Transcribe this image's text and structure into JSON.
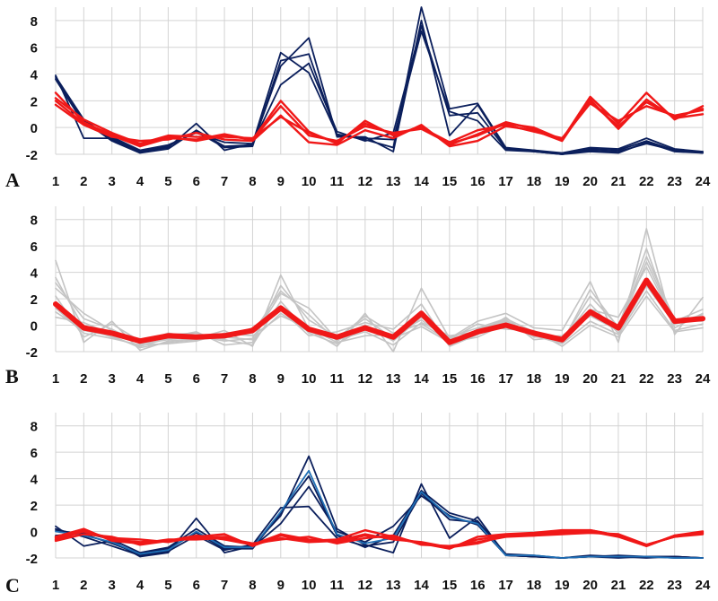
{
  "chart_data": [
    {
      "panel": "A",
      "type": "line",
      "x": [
        1,
        2,
        3,
        4,
        5,
        6,
        7,
        8,
        9,
        10,
        11,
        12,
        13,
        14,
        15,
        16,
        17,
        18,
        19,
        20,
        21,
        22,
        23,
        24
      ],
      "ylim": [
        -2,
        9
      ],
      "yticks": [
        -2,
        0,
        2,
        4,
        6,
        8
      ],
      "grid": true,
      "series": [
        {
          "group": "navy",
          "color": "#0b1f5c",
          "values": [
            3.9,
            -0.8,
            -0.8,
            -1.8,
            -1.5,
            0.3,
            -1.7,
            -1.2,
            5.6,
            4.1,
            -0.5,
            -0.9,
            -1.5,
            9.0,
            1.4,
            1.8,
            -1.5,
            -1.7,
            -1.9,
            -1.5,
            -1.6,
            -0.8,
            -1.6,
            -1.8
          ]
        },
        {
          "group": "navy",
          "color": "#0b1f5c",
          "values": [
            3.7,
            0.5,
            -1.0,
            -1.9,
            -1.6,
            -0.2,
            -1.4,
            -1.3,
            4.6,
            6.7,
            -0.7,
            -0.7,
            -1.8,
            8.0,
            -0.6,
            1.7,
            -1.6,
            -1.8,
            -2.0,
            -1.6,
            -1.7,
            -1.0,
            -1.7,
            -1.8
          ]
        },
        {
          "group": "navy",
          "color": "#0b1f5c",
          "values": [
            3.6,
            0.3,
            -0.7,
            -1.7,
            -1.3,
            -0.4,
            -1.1,
            -1.2,
            3.2,
            4.8,
            -0.3,
            -1.0,
            -0.4,
            7.6,
            0.9,
            1.1,
            -1.6,
            -1.7,
            -2.0,
            -1.7,
            -1.8,
            -1.2,
            -1.7,
            -1.9
          ]
        },
        {
          "group": "navy",
          "color": "#0b1f5c",
          "values": [
            3.8,
            0.6,
            -0.9,
            -1.8,
            -1.4,
            -0.3,
            -1.5,
            -1.4,
            5.0,
            5.5,
            -0.6,
            -0.8,
            -0.9,
            7.2,
            1.2,
            0.5,
            -1.7,
            -1.8,
            -2.0,
            -1.8,
            -1.9,
            -1.1,
            -1.8,
            -1.9
          ]
        },
        {
          "group": "red",
          "color": "#f01818",
          "values": [
            2.6,
            0.4,
            -0.6,
            -1.4,
            -0.8,
            -0.9,
            -0.5,
            -0.9,
            2.0,
            -0.3,
            -1.2,
            0.5,
            -0.6,
            0.1,
            -1.3,
            -0.5,
            0.4,
            -0.1,
            -0.9,
            2.3,
            0.3,
            2.6,
            0.6,
            1.6
          ]
        },
        {
          "group": "red",
          "color": "#f01818",
          "values": [
            2.2,
            0.6,
            -0.4,
            -1.2,
            -0.6,
            -0.7,
            -0.7,
            -0.8,
            0.8,
            -0.4,
            -1.1,
            0.3,
            -0.5,
            0.0,
            -1.1,
            -0.2,
            0.2,
            -0.3,
            -0.8,
            1.8,
            0.5,
            1.6,
            0.9,
            1.3
          ]
        },
        {
          "group": "red",
          "color": "#f01818",
          "values": [
            1.7,
            0.2,
            -0.7,
            -1.0,
            -0.9,
            -0.4,
            -0.9,
            -1.0,
            0.9,
            -1.1,
            -1.3,
            -0.2,
            -0.8,
            0.2,
            -1.4,
            -1.0,
            0.1,
            -0.2,
            -1.0,
            2.1,
            -0.1,
            2.1,
            0.7,
            1.0
          ]
        },
        {
          "group": "red",
          "color": "#f01818",
          "values": [
            2.0,
            0.3,
            -0.5,
            -1.3,
            -0.7,
            -1.0,
            -0.6,
            -0.9,
            1.6,
            -0.6,
            -1.0,
            0.1,
            -0.4,
            -0.1,
            -1.2,
            -0.6,
            0.3,
            0.0,
            -0.9,
            1.9,
            0.1,
            1.9,
            0.8,
            1.4
          ]
        }
      ]
    },
    {
      "panel": "B",
      "type": "line",
      "x": [
        1,
        2,
        3,
        4,
        5,
        6,
        7,
        8,
        9,
        10,
        11,
        12,
        13,
        14,
        15,
        16,
        17,
        18,
        19,
        20,
        21,
        22,
        23,
        24
      ],
      "ylim": [
        -2,
        9
      ],
      "yticks": [
        -2,
        0,
        2,
        4,
        6,
        8
      ],
      "grid": true,
      "series": [
        {
          "group": "gray",
          "color": "#c4c4c4",
          "values": [
            4.9,
            -1.3,
            0.3,
            -1.9,
            -1.2,
            -1.0,
            -0.4,
            -1.6,
            3.8,
            -0.3,
            -1.6,
            0.9,
            -2.0,
            2.8,
            -1.0,
            0.3,
            0.9,
            -0.2,
            -0.4,
            3.3,
            -1.3,
            7.3,
            -0.7,
            2.1
          ]
        },
        {
          "group": "gray",
          "color": "#c4c4c4",
          "values": [
            3.6,
            -0.2,
            -0.9,
            -1.6,
            -1.0,
            -0.8,
            -1.2,
            -1.0,
            2.4,
            1.3,
            -1.1,
            -0.5,
            -1.5,
            0.2,
            -0.8,
            -0.5,
            0.3,
            -0.7,
            -1.3,
            2.7,
            -0.2,
            5.2,
            0.4,
            0.3
          ]
        },
        {
          "group": "gray",
          "color": "#c4c4c4",
          "values": [
            2.8,
            0.9,
            -0.4,
            -1.3,
            -0.6,
            -0.9,
            -1.0,
            -0.2,
            1.2,
            -0.8,
            -0.5,
            0.2,
            -0.3,
            1.6,
            -1.6,
            -0.7,
            0.6,
            -1.1,
            -0.9,
            1.2,
            0.6,
            4.4,
            0.2,
            0.8
          ]
        },
        {
          "group": "gray",
          "color": "#c4c4c4",
          "values": [
            1.3,
            -0.6,
            -1.0,
            -1.5,
            -1.4,
            -1.2,
            -0.6,
            -0.8,
            0.7,
            -0.2,
            -1.3,
            -0.8,
            -0.7,
            0.4,
            -1.1,
            0.1,
            -0.3,
            -0.4,
            -1.6,
            0.0,
            -0.9,
            2.2,
            -0.5,
            -0.2
          ]
        },
        {
          "group": "gray",
          "color": "#c4c4c4",
          "values": [
            0.6,
            0.2,
            -0.7,
            -1.1,
            -0.9,
            -0.5,
            -1.5,
            -1.3,
            3.0,
            0.4,
            -0.9,
            0.5,
            -1.0,
            -0.1,
            -1.3,
            -0.9,
            0.1,
            -0.6,
            -1.1,
            1.6,
            -0.6,
            3.0,
            0.1,
            0.5
          ]
        },
        {
          "group": "gray",
          "color": "#c4c4c4",
          "values": [
            2.2,
            -0.9,
            0.1,
            -1.2,
            -0.7,
            -0.6,
            -1.1,
            -1.5,
            1.8,
            -0.6,
            -1.4,
            -0.2,
            -0.9,
            1.0,
            -1.5,
            -0.3,
            0.4,
            -0.9,
            -0.8,
            0.7,
            -0.4,
            4.8,
            0.3,
            1.2
          ]
        },
        {
          "group": "gray",
          "color": "#c4c4c4",
          "values": [
            3.2,
            0.5,
            -0.3,
            -1.4,
            -1.1,
            -0.8,
            -0.8,
            -0.6,
            2.6,
            0.8,
            -1.2,
            0.0,
            -1.2,
            0.6,
            -0.9,
            -0.2,
            0.5,
            -0.5,
            -1.2,
            2.2,
            -0.1,
            5.8,
            -0.2,
            0.9
          ]
        },
        {
          "group": "gray",
          "color": "#c4c4c4",
          "values": [
            1.0,
            -0.4,
            -0.8,
            -1.7,
            -1.3,
            -1.1,
            -0.9,
            -1.1,
            0.9,
            -0.5,
            -1.0,
            0.7,
            -0.6,
            0.1,
            -1.2,
            -0.6,
            0.2,
            -0.8,
            -1.4,
            0.3,
            -0.7,
            2.6,
            -0.4,
            0.1
          ]
        },
        {
          "group": "red-mean",
          "color": "#f01818",
          "values": [
            1.6,
            -0.2,
            -0.6,
            -1.2,
            -0.8,
            -0.9,
            -0.8,
            -0.4,
            1.3,
            -0.3,
            -0.9,
            -0.2,
            -0.9,
            0.9,
            -1.3,
            -0.5,
            0.0,
            -0.6,
            -1.1,
            1.0,
            -0.2,
            3.4,
            0.3,
            0.5
          ]
        }
      ]
    },
    {
      "panel": "C",
      "type": "line",
      "x": [
        1,
        2,
        3,
        4,
        5,
        6,
        7,
        8,
        9,
        10,
        11,
        12,
        13,
        14,
        15,
        16,
        17,
        18,
        19,
        20,
        21,
        22,
        23,
        24
      ],
      "ylim": [
        -2,
        9
      ],
      "yticks": [
        -2,
        0,
        2,
        4,
        6,
        8
      ],
      "grid": true,
      "series": [
        {
          "group": "navy",
          "color": "#0b1f5c",
          "values": [
            0.4,
            -1.1,
            -0.7,
            -1.9,
            -1.6,
            1.0,
            -1.6,
            -1.1,
            1.2,
            5.7,
            0.2,
            -1.0,
            -1.6,
            3.6,
            -0.5,
            1.1,
            -1.8,
            -1.9,
            -2.0,
            -1.8,
            -1.9,
            -1.9,
            -1.9,
            -2.0
          ]
        },
        {
          "group": "navy",
          "color": "#0b1f5c",
          "values": [
            0.1,
            -0.2,
            -0.9,
            -1.7,
            -1.3,
            -0.1,
            -1.3,
            -1.3,
            1.4,
            4.2,
            -0.3,
            -1.2,
            -0.3,
            3.1,
            1.4,
            0.8,
            -1.7,
            -1.8,
            -2.0,
            -1.9,
            -1.8,
            -1.9,
            -2.0,
            -2.0
          ]
        },
        {
          "group": "navy",
          "color": "#0b1f5c",
          "values": [
            -0.3,
            -0.1,
            -0.6,
            -1.6,
            -1.2,
            0.2,
            -1.1,
            -1.2,
            0.6,
            3.4,
            0.0,
            -0.8,
            0.4,
            2.7,
            1.2,
            0.5,
            -1.8,
            -1.9,
            -2.0,
            -1.9,
            -1.9,
            -2.0,
            -1.9,
            -2.0
          ]
        },
        {
          "group": "navy",
          "color": "#0b1f5c",
          "values": [
            0.2,
            -0.4,
            -1.1,
            -1.8,
            -1.5,
            -0.3,
            -1.4,
            -1.0,
            1.8,
            1.9,
            -0.5,
            -1.1,
            -0.8,
            2.9,
            0.9,
            0.7,
            -1.8,
            -1.9,
            -2.0,
            -1.9,
            -2.0,
            -1.9,
            -1.9,
            -2.0
          ]
        },
        {
          "group": "blue",
          "color": "#1f6fb5",
          "values": [
            0.0,
            -0.3,
            -0.8,
            -1.7,
            -1.4,
            0.0,
            -1.2,
            -1.2,
            1.5,
            4.6,
            -0.2,
            -0.9,
            -0.5,
            3.0,
            1.1,
            0.6,
            -1.8,
            -1.8,
            -2.0,
            -1.9,
            -1.9,
            -1.9,
            -2.0,
            -2.0
          ]
        },
        {
          "group": "red",
          "color": "#f01818",
          "values": [
            -0.6,
            0.0,
            -0.5,
            -0.6,
            -0.8,
            -0.4,
            -0.2,
            -1.1,
            -0.3,
            -0.7,
            -0.6,
            0.1,
            -0.4,
            -0.9,
            -1.3,
            -0.4,
            -0.2,
            -0.1,
            0.1,
            0.1,
            -0.3,
            -1.1,
            -0.3,
            -0.1
          ]
        },
        {
          "group": "red",
          "color": "#f01818",
          "values": [
            -0.4,
            0.2,
            -0.7,
            -0.9,
            -0.6,
            -0.6,
            -0.5,
            -0.9,
            -0.6,
            -0.4,
            -0.9,
            -0.5,
            -0.3,
            -1.0,
            -1.1,
            -0.8,
            -0.4,
            -0.3,
            -0.2,
            -0.1,
            -0.2,
            -1.0,
            -0.4,
            -0.2
          ]
        },
        {
          "group": "red",
          "color": "#f01818",
          "values": [
            -0.7,
            -0.2,
            -0.4,
            -1.0,
            -0.7,
            -0.5,
            -0.4,
            -1.0,
            -0.5,
            -0.8,
            -0.7,
            -0.2,
            -0.6,
            -0.8,
            -1.2,
            -0.9,
            -0.3,
            -0.2,
            0.0,
            0.0,
            -0.4,
            -1.1,
            -0.3,
            0.0
          ]
        },
        {
          "group": "red",
          "color": "#f01818",
          "values": [
            -0.5,
            0.1,
            -0.6,
            -0.8,
            -0.7,
            -0.3,
            -0.6,
            -1.0,
            -0.2,
            -0.6,
            -0.8,
            -0.3,
            -0.5,
            -0.9,
            -1.2,
            -0.6,
            -0.3,
            -0.3,
            -0.1,
            0.1,
            -0.3,
            -1.0,
            -0.4,
            -0.1
          ]
        }
      ]
    }
  ]
}
